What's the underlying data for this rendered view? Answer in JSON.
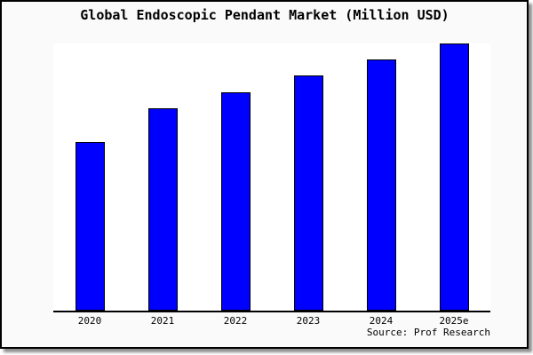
{
  "chart_data": {
    "type": "bar",
    "title": "Global Endoscopic Pendant Market (Million USD)",
    "categories": [
      "2020",
      "2021",
      "2022",
      "2023",
      "2024",
      "2025e"
    ],
    "values": [
      63,
      75.5,
      81.5,
      88,
      94,
      100
    ],
    "values_note": "y-axis has no tick labels; values are relative bar heights indexed to 2025e = 100",
    "xlabel": "",
    "ylabel": "",
    "ylim": [
      0,
      100
    ],
    "grid": false,
    "legend": false,
    "bar_color": "#0000ff",
    "bar_border_color": "#000000",
    "source": "Source: Prof Research"
  },
  "colors": {
    "background": "#fafafa",
    "plot_background": "#ffffff",
    "frame_border": "#000000",
    "axis": "#000000",
    "shadow": "#737373",
    "bar": "#0000ff"
  }
}
